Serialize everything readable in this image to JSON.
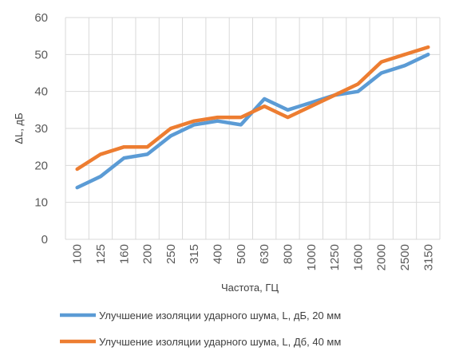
{
  "chart_data": {
    "type": "line",
    "categories": [
      "100",
      "125",
      "160",
      "200",
      "250",
      "315",
      "400",
      "500",
      "630",
      "800",
      "1000",
      "1250",
      "1600",
      "2000",
      "2500",
      "3150"
    ],
    "series": [
      {
        "name": "Улучшение изоляции ударного шума, L, дБ, 20 мм",
        "color": "#5B9BD5",
        "values": [
          14,
          17,
          22,
          23,
          28,
          31,
          32,
          31,
          38,
          35,
          37,
          39,
          40,
          45,
          47,
          50
        ]
      },
      {
        "name": "Улучшение изоляции ударного шума, L, Дб,  40 мм",
        "color": "#ED7D31",
        "values": [
          19,
          23,
          25,
          25,
          30,
          32,
          33,
          33,
          36,
          33,
          36,
          39,
          42,
          48,
          50,
          52
        ]
      }
    ],
    "ylim": [
      0,
      60
    ],
    "yticks": [
      "0",
      "10",
      "20",
      "30",
      "40",
      "50",
      "60"
    ],
    "xlabel": "Частота, ГЦ",
    "ylabel": "ΔL, дБ",
    "grid": "horizontal and vertical",
    "legend_position": "bottom"
  }
}
